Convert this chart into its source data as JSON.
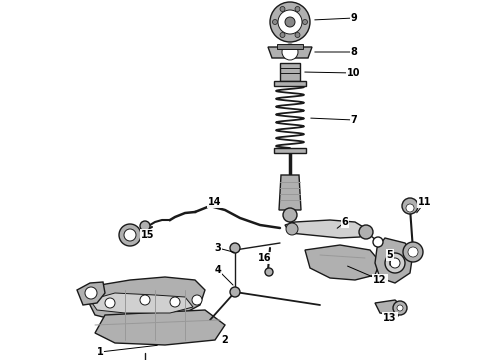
{
  "background_color": "#ffffff",
  "line_color": "#1a1a1a",
  "fig_width": 4.9,
  "fig_height": 3.6,
  "dpi": 100,
  "gray_light": "#d0d0d0",
  "gray_mid": "#b0b0b0",
  "gray_dark": "#888888"
}
